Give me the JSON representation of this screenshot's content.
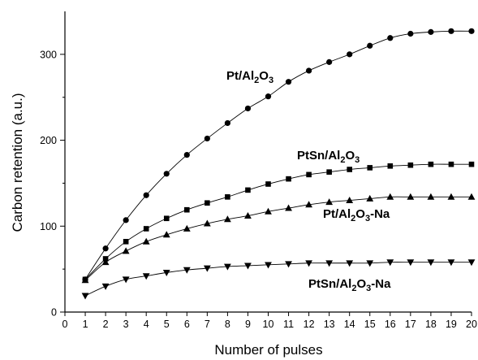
{
  "chart_data": {
    "type": "line",
    "xlabel": "Number of pulses",
    "ylabel": "Carbon retention (a.u.)",
    "xlim": [
      0,
      20
    ],
    "ylim": [
      0,
      350
    ],
    "x_ticks": [
      0,
      1,
      2,
      3,
      4,
      5,
      6,
      7,
      8,
      9,
      10,
      11,
      12,
      13,
      14,
      15,
      16,
      17,
      18,
      19,
      20
    ],
    "y_ticks": [
      0,
      100,
      200,
      300
    ],
    "grid": false,
    "x": [
      1,
      2,
      3,
      4,
      5,
      6,
      7,
      8,
      9,
      10,
      11,
      12,
      13,
      14,
      15,
      16,
      17,
      18,
      19,
      20
    ],
    "series": [
      {
        "name": "Pt/Al2O3",
        "marker": "circle",
        "values": [
          38,
          74,
          107,
          136,
          161,
          183,
          202,
          220,
          237,
          251,
          268,
          281,
          291,
          300,
          310,
          319,
          324,
          326,
          327,
          327
        ]
      },
      {
        "name": "PtSn/Al2O3",
        "marker": "square",
        "values": [
          38,
          62,
          82,
          97,
          109,
          119,
          127,
          134,
          142,
          149,
          155,
          160,
          163,
          166,
          168,
          170,
          171,
          172,
          172,
          172
        ]
      },
      {
        "name": "Pt/Al2O3-Na",
        "marker": "triangle-up",
        "values": [
          37,
          58,
          71,
          82,
          90,
          97,
          103,
          108,
          112,
          117,
          121,
          125,
          128,
          130,
          132,
          134,
          134,
          134,
          134,
          134
        ]
      },
      {
        "name": "PtSn/Al2O3-Na",
        "marker": "triangle-down",
        "values": [
          19,
          30,
          38,
          42,
          46,
          49,
          51,
          53,
          54,
          55,
          56,
          57,
          57,
          57,
          57,
          58,
          58,
          58,
          58,
          58
        ]
      }
    ],
    "annotations": [
      {
        "series": "Pt/Al2O3",
        "parts": [
          "Pt/Al",
          "2",
          "O",
          "3",
          ""
        ]
      },
      {
        "series": "PtSn/Al2O3",
        "parts": [
          "PtSn/Al",
          "2",
          "O",
          "3",
          ""
        ]
      },
      {
        "series": "Pt/Al2O3-Na",
        "parts": [
          "Pt/Al",
          "2",
          "O",
          "3",
          "-Na"
        ]
      },
      {
        "series": "PtSn/Al2O3-Na",
        "parts": [
          "PtSn/Al",
          "2",
          "O",
          "3",
          "-Na"
        ]
      }
    ]
  }
}
